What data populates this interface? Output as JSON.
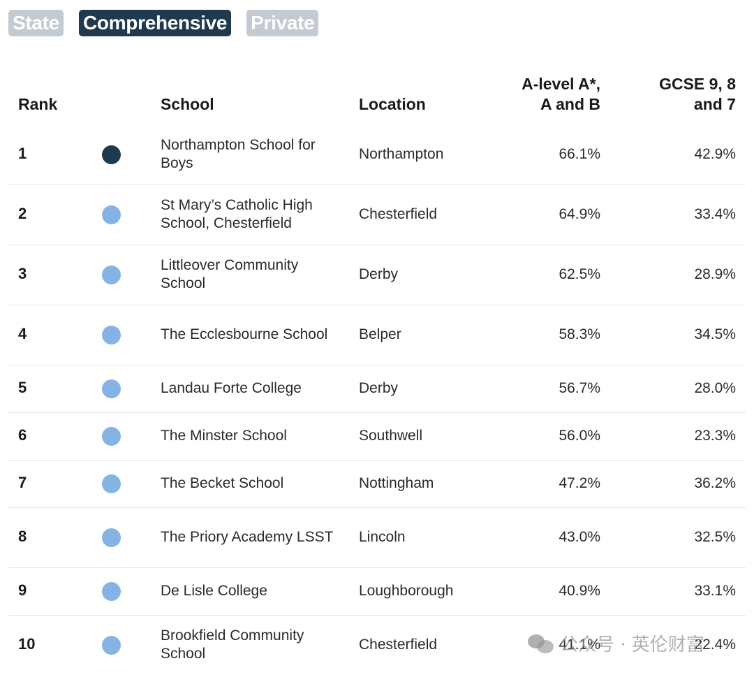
{
  "filters": [
    {
      "label": "State",
      "active": false
    },
    {
      "label": "Comprehensive",
      "active": true
    },
    {
      "label": "Private",
      "active": false
    }
  ],
  "table": {
    "headers": {
      "rank": "Rank",
      "school": "School",
      "location": "Location",
      "alevel": "A-level A*, A and B",
      "gcse": "GCSE 9, 8 and 7"
    },
    "rows": [
      {
        "rank": "1",
        "dot": "dark",
        "school": "Northampton School for Boys",
        "location": "Northampton",
        "alevel": "66.1%",
        "gcse": "42.9%"
      },
      {
        "rank": "2",
        "dot": "light",
        "school": "St Mary’s Catholic High School, Chesterfield",
        "location": "Chesterfield",
        "alevel": "64.9%",
        "gcse": "33.4%"
      },
      {
        "rank": "3",
        "dot": "light",
        "school": "Littleover Community School",
        "location": "Derby",
        "alevel": "62.5%",
        "gcse": "28.9%"
      },
      {
        "rank": "4",
        "dot": "light",
        "school": "The Ecclesbourne School",
        "location": "Belper",
        "alevel": "58.3%",
        "gcse": "34.5%"
      },
      {
        "rank": "5",
        "dot": "light",
        "school": "Landau Forte College",
        "location": "Derby",
        "alevel": "56.7%",
        "gcse": "28.0%"
      },
      {
        "rank": "6",
        "dot": "light",
        "school": "The Minster School",
        "location": "Southwell",
        "alevel": "56.0%",
        "gcse": "23.3%"
      },
      {
        "rank": "7",
        "dot": "light",
        "school": "The Becket School",
        "location": "Nottingham",
        "alevel": "47.2%",
        "gcse": "36.2%"
      },
      {
        "rank": "8",
        "dot": "light",
        "school": "The Priory Academy LSST",
        "location": "Lincoln",
        "alevel": "43.0%",
        "gcse": "32.5%"
      },
      {
        "rank": "9",
        "dot": "light",
        "school": "De Lisle College",
        "location": "Loughborough",
        "alevel": "40.9%",
        "gcse": "33.1%"
      },
      {
        "rank": "10",
        "dot": "light",
        "school": "Brookfield Community School",
        "location": "Chesterfield",
        "alevel": "41.1%",
        "gcse": "22.4%"
      }
    ]
  },
  "colors": {
    "dark_dot": "#1f3a4e",
    "light_dot": "#85b3e4",
    "chip_inactive": "#c3cad1",
    "chip_active": "#1f3a4e"
  },
  "watermark": {
    "icon": "wechat-icon",
    "text": "公众号 · 英伦财富"
  }
}
